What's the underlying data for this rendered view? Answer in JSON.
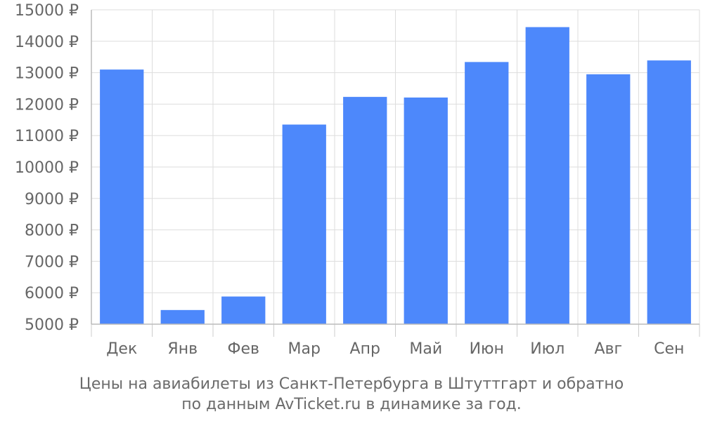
{
  "chart_data": {
    "type": "bar",
    "categories": [
      "Дек",
      "Янв",
      "Фев",
      "Мар",
      "Апр",
      "Май",
      "Июн",
      "Июл",
      "Авг",
      "Сен"
    ],
    "values": [
      13100,
      5450,
      5880,
      11350,
      12230,
      12210,
      13340,
      14450,
      12950,
      13390
    ],
    "ylim": [
      5000,
      15000
    ],
    "yticks": [
      5000,
      6000,
      7000,
      8000,
      9000,
      10000,
      11000,
      12000,
      13000,
      14000,
      15000
    ],
    "currency_symbol": "₽",
    "grid": true,
    "bar_color": "#4d88fb"
  },
  "caption": {
    "line1": "Цены на авиабилеты из Санкт-Петербурга в Штуттгарт и обратно",
    "line2": "по данным AvTicket.ru в динамике за год."
  }
}
